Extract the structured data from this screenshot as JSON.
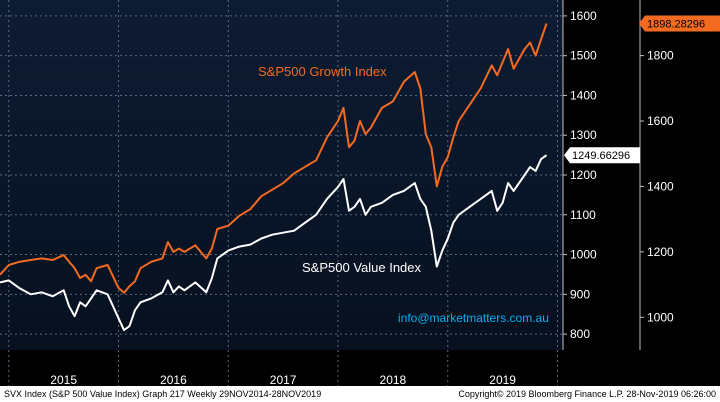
{
  "chart_data": {
    "type": "line",
    "title": "",
    "xlabel": "",
    "ylabel": "",
    "x_labels": [
      "2015",
      "2016",
      "2017",
      "2018",
      "2019"
    ],
    "grid": true,
    "series": [
      {
        "name": "S&P500 Growth Index",
        "axis": "right",
        "color": "#f26b21",
        "last_label": "1898.28296",
        "x": [
          2014.92,
          2015.0,
          2015.1,
          2015.2,
          2015.3,
          2015.4,
          2015.5,
          2015.55,
          2015.6,
          2015.65,
          2015.7,
          2015.75,
          2015.8,
          2015.9,
          2016.0,
          2016.05,
          2016.1,
          2016.15,
          2016.2,
          2016.3,
          2016.4,
          2016.45,
          2016.5,
          2016.55,
          2016.6,
          2016.7,
          2016.8,
          2016.85,
          2016.9,
          2017.0,
          2017.1,
          2017.2,
          2017.3,
          2017.4,
          2017.5,
          2017.6,
          2017.7,
          2017.8,
          2017.9,
          2018.0,
          2018.05,
          2018.1,
          2018.15,
          2018.2,
          2018.25,
          2018.3,
          2018.4,
          2018.5,
          2018.6,
          2018.7,
          2018.75,
          2018.8,
          2018.85,
          2018.9,
          2018.95,
          2019.0,
          2019.05,
          2019.1,
          2019.2,
          2019.3,
          2019.4,
          2019.45,
          2019.5,
          2019.55,
          2019.6,
          2019.7,
          2019.75,
          2019.8,
          2019.85,
          2019.9
        ],
        "values": [
          1130,
          1160,
          1170,
          1175,
          1180,
          1175,
          1190,
          1170,
          1150,
          1120,
          1130,
          1110,
          1150,
          1160,
          1090,
          1075,
          1095,
          1110,
          1150,
          1170,
          1180,
          1230,
          1200,
          1210,
          1200,
          1220,
          1180,
          1210,
          1270,
          1280,
          1310,
          1330,
          1370,
          1390,
          1410,
          1440,
          1460,
          1480,
          1550,
          1600,
          1640,
          1520,
          1540,
          1600,
          1560,
          1580,
          1640,
          1660,
          1720,
          1750,
          1700,
          1560,
          1520,
          1400,
          1460,
          1490,
          1550,
          1600,
          1650,
          1700,
          1770,
          1740,
          1780,
          1820,
          1760,
          1820,
          1840,
          1800,
          1850,
          1898.28
        ]
      },
      {
        "name": "S&P500 Value Index",
        "axis": "left",
        "color": "#ffffff",
        "last_label": "1249.66296",
        "x": [
          2014.92,
          2015.0,
          2015.1,
          2015.2,
          2015.3,
          2015.4,
          2015.5,
          2015.55,
          2015.6,
          2015.65,
          2015.7,
          2015.75,
          2015.8,
          2015.9,
          2016.0,
          2016.05,
          2016.1,
          2016.15,
          2016.2,
          2016.3,
          2016.4,
          2016.45,
          2016.5,
          2016.55,
          2016.6,
          2016.7,
          2016.8,
          2016.85,
          2016.9,
          2017.0,
          2017.1,
          2017.2,
          2017.3,
          2017.4,
          2017.5,
          2017.6,
          2017.7,
          2017.8,
          2017.9,
          2018.0,
          2018.05,
          2018.1,
          2018.15,
          2018.2,
          2018.25,
          2018.3,
          2018.4,
          2018.5,
          2018.6,
          2018.7,
          2018.75,
          2018.8,
          2018.85,
          2018.9,
          2018.95,
          2019.0,
          2019.05,
          2019.1,
          2019.2,
          2019.3,
          2019.4,
          2019.45,
          2019.5,
          2019.55,
          2019.6,
          2019.7,
          2019.75,
          2019.8,
          2019.85,
          2019.9
        ],
        "values": [
          930,
          935,
          915,
          900,
          905,
          895,
          910,
          870,
          845,
          880,
          870,
          890,
          910,
          900,
          840,
          810,
          820,
          860,
          880,
          890,
          905,
          935,
          905,
          920,
          910,
          930,
          905,
          940,
          990,
          1010,
          1020,
          1025,
          1040,
          1050,
          1055,
          1060,
          1080,
          1100,
          1140,
          1170,
          1190,
          1110,
          1120,
          1140,
          1100,
          1120,
          1130,
          1150,
          1160,
          1180,
          1140,
          1120,
          1060,
          970,
          1010,
          1040,
          1080,
          1100,
          1120,
          1140,
          1160,
          1110,
          1130,
          1180,
          1160,
          1200,
          1220,
          1210,
          1240,
          1249.66
        ]
      }
    ],
    "left_axis": {
      "ticks": [
        800,
        900,
        1000,
        1100,
        1200,
        1300,
        1400,
        1500,
        1600
      ],
      "ylim": [
        760,
        1640
      ]
    },
    "right_axis": {
      "ticks": [
        1000,
        1200,
        1400,
        1600,
        1800
      ],
      "ylim": [
        900,
        1970
      ]
    },
    "xlim": [
      2014.92,
      2020.05
    ],
    "annotations": [
      {
        "text": "S&P500 Growth Index",
        "color": "#f26b21"
      },
      {
        "text": "S&P500 Value Index",
        "color": "#ffffff"
      },
      {
        "text": "info@marketmatters.com.au",
        "color": "#00b0f0"
      }
    ]
  },
  "footer": {
    "left": "SVX Index (S&P 500 Value Index) Graph 217  Weekly 29NOV2014-28NOV2019",
    "right": "Copyright© 2019 Bloomberg Finance L.P.          28-Nov-2019 06:26:00"
  }
}
